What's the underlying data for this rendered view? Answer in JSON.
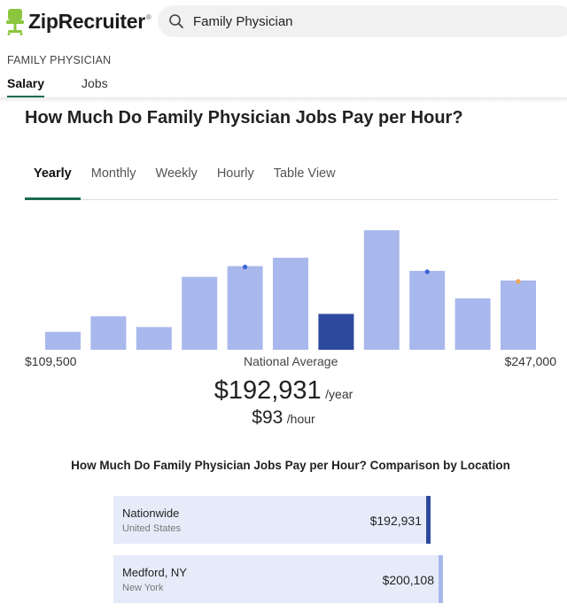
{
  "header": {
    "brand": "ZipRecruiter",
    "brand_mark": "®",
    "search_value": "Family Physician"
  },
  "breadcrumb": "FAMILY PHYSICIAN",
  "sub_tabs": [
    {
      "label": "Salary",
      "active": true
    },
    {
      "label": "Jobs",
      "active": false
    }
  ],
  "main": {
    "title": "How Much Do Family Physician Jobs Pay per Hour?",
    "period_tabs": [
      {
        "label": "Yearly",
        "active": true
      },
      {
        "label": "Monthly",
        "active": false
      },
      {
        "label": "Weekly",
        "active": false
      },
      {
        "label": "Hourly",
        "active": false
      },
      {
        "label": "Table View",
        "active": false
      }
    ]
  },
  "chart_data": {
    "type": "bar",
    "values": [
      0.15,
      0.28,
      0.19,
      0.61,
      0.7,
      0.77,
      0.3,
      1.0,
      0.66,
      0.43,
      0.58
    ],
    "highlight_index": 6,
    "markers": [
      {
        "index": 4,
        "color": "#3a64d6"
      },
      {
        "index": 8,
        "color": "#3a64d6"
      },
      {
        "index": 10,
        "color": "#f0a64a"
      }
    ],
    "colors": {
      "bar": "#a9b8ec",
      "highlight": "#2e4a9e"
    },
    "range_min": "$109,500",
    "range_max": "$247,000",
    "center_label": "National Average"
  },
  "average": {
    "yearly_value": "$192,931",
    "yearly_unit": "/year",
    "hourly_value": "$93",
    "hourly_unit": "/hour"
  },
  "comparison": {
    "title": "How Much Do Family Physician Jobs Pay per Hour? Comparison by Location",
    "rows": [
      {
        "name": "Nationwide",
        "state": "United States",
        "value": "$192,931",
        "accent": "#2e4a9e"
      },
      {
        "name": "Medford, NY",
        "state": "New York",
        "value": "$200,108",
        "accent": "#a9b8ec"
      }
    ]
  }
}
